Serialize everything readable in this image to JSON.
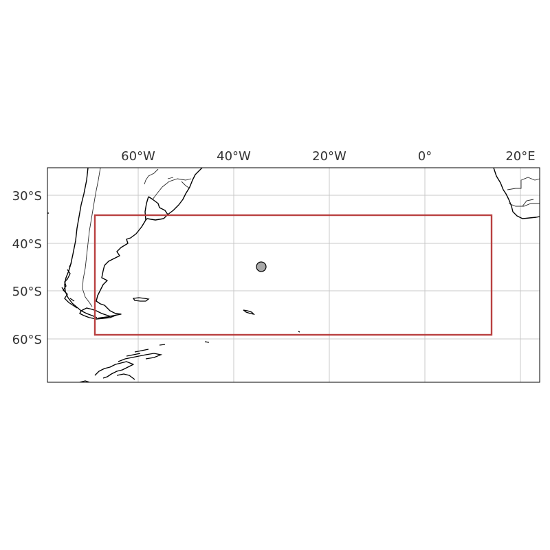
{
  "map": {
    "lon_ticks": [
      "60°W",
      "40°W",
      "20°W",
      "0°",
      "20°E"
    ],
    "lat_ticks": [
      "30°S",
      "40°S",
      "50°S",
      "60°S"
    ],
    "extent": {
      "lon": [
        -79,
        24
      ],
      "lat": [
        -69.5,
        -24.5
      ]
    },
    "region_box": {
      "lon": [
        -69,
        14
      ],
      "lat": [
        -59,
        -34
      ],
      "color": "#b94040"
    },
    "marker": {
      "lon": -34.5,
      "lat": -45,
      "color": "#a8a8a8"
    }
  }
}
